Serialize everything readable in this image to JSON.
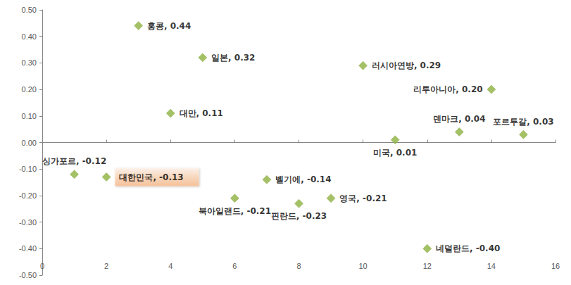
{
  "chart_data": {
    "type": "scatter",
    "x": [
      1,
      2,
      3,
      4,
      5,
      6,
      7,
      8,
      9,
      10,
      11,
      12,
      13,
      14,
      15
    ],
    "values": [
      -0.12,
      -0.13,
      0.44,
      0.11,
      0.32,
      -0.21,
      -0.14,
      -0.23,
      -0.21,
      0.29,
      0.01,
      -0.4,
      0.04,
      0.2,
      0.03
    ],
    "value_labels": [
      "싱가포르, -0.12",
      "대한민국, -0.13",
      "홍콩, 0.44",
      "대만, 0.11",
      "일본, 0.32",
      "북아일랜드, -0.21",
      "벨기에, -0.14",
      "핀란드, -0.23",
      "영국, -0.21",
      "러시아연방, 0.29",
      "미국, 0.01",
      "네덜란드, -0.40",
      "덴마크, 0.04",
      "리투아니아, 0.20",
      "포르투갈, 0.03"
    ],
    "highlighted": [
      false,
      true,
      false,
      false,
      false,
      false,
      false,
      false,
      false,
      false,
      false,
      false,
      false,
      false,
      false
    ],
    "color": "#8db33f",
    "marker": "diamond",
    "data_labels": true,
    "grid": false,
    "xlim": [
      0,
      16
    ],
    "xticks": [
      0,
      2,
      4,
      6,
      8,
      10,
      12,
      14,
      16
    ],
    "ylim": [
      -0.5,
      0.5
    ],
    "yticks": [
      {
        "value": -0.5,
        "label": "-0.50"
      },
      {
        "value": -0.4,
        "label": "-0.40"
      },
      {
        "value": -0.3,
        "label": "-0.30"
      },
      {
        "value": -0.2,
        "label": "-0.20"
      },
      {
        "value": -0.1,
        "label": "-0.10"
      },
      {
        "value": 0,
        "label": "0.00"
      },
      {
        "value": 0.1,
        "label": "0.10"
      },
      {
        "value": 0.2,
        "label": "0.20"
      },
      {
        "value": 0.3,
        "label": "0.30"
      },
      {
        "value": 0.4,
        "label": "0.40"
      },
      {
        "value": 0.5,
        "label": "0.50"
      }
    ]
  }
}
